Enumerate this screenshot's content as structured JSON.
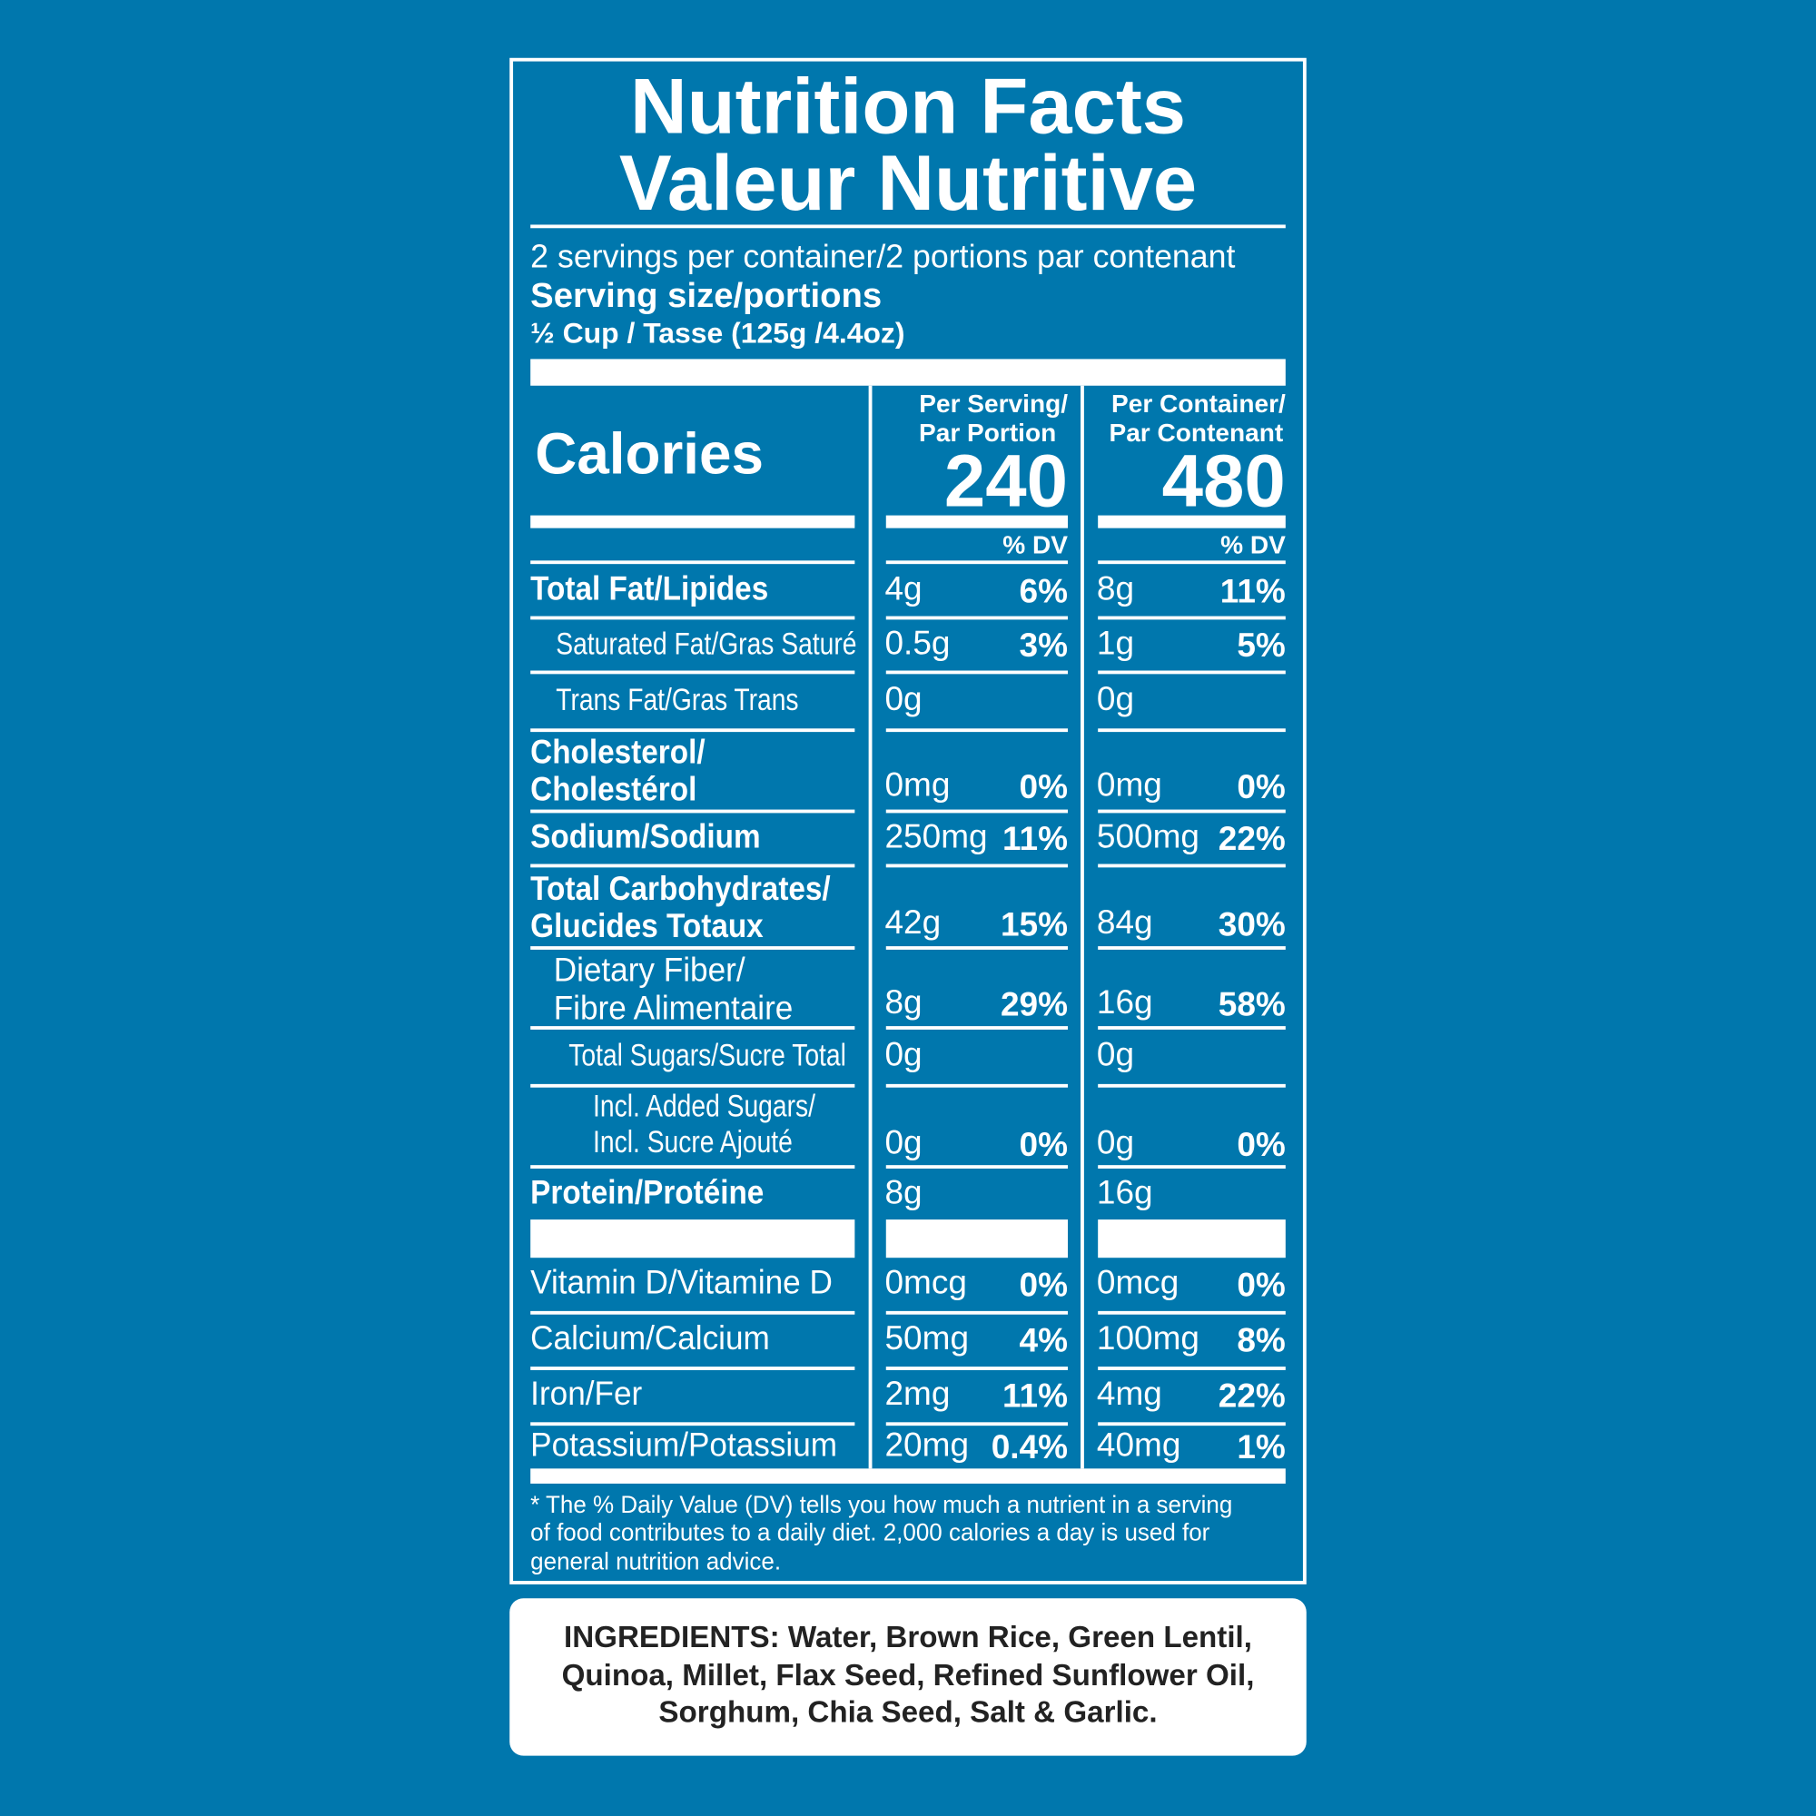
{
  "header": {
    "title": [
      "Nutrition Facts",
      "Valeur Nutritive"
    ],
    "servings": "2 servings per container/2 portions par contenant",
    "serving_size_label": "Serving size/portions",
    "serving_size": "½ Cup / Tasse (125g /4.4oz)"
  },
  "calories": {
    "label": "Calories",
    "serving_header": [
      "Per Serving/",
      "Par Portion"
    ],
    "serving": "240",
    "container_header": [
      "Per Container/",
      "Par Contenant"
    ],
    "container": "480",
    "dv_header": "% DV"
  },
  "rows": [
    {
      "label": [
        "Total Fat/Lipides"
      ],
      "serving": {
        "amount": "4g",
        "dv": "6%"
      },
      "container": {
        "amount": "8g",
        "dv": "11%"
      }
    },
    {
      "label": [
        "Saturated Fat/Gras Saturé"
      ],
      "serving": {
        "amount": "0.5g",
        "dv": "3%"
      },
      "container": {
        "amount": "1g",
        "dv": "5%"
      }
    },
    {
      "label": [
        "Trans Fat/Gras Trans"
      ],
      "serving": {
        "amount": "0g"
      },
      "container": {
        "amount": "0g"
      }
    },
    {
      "label": [
        "Cholesterol/",
        "Cholestérol"
      ],
      "serving": {
        "amount": "0mg",
        "dv": "0%"
      },
      "container": {
        "amount": "0mg",
        "dv": "0%"
      }
    },
    {
      "label": [
        "Sodium/Sodium"
      ],
      "serving": {
        "amount": "250mg",
        "dv": "11%"
      },
      "container": {
        "amount": "500mg",
        "dv": "22%"
      }
    },
    {
      "label": [
        "Total Carbohydrates/",
        "Glucides Totaux"
      ],
      "serving": {
        "amount": "42g",
        "dv": "15%"
      },
      "container": {
        "amount": "84g",
        "dv": "30%"
      }
    },
    {
      "label": [
        "Dietary Fiber/",
        "Fibre Alimentaire"
      ],
      "serving": {
        "amount": "8g",
        "dv": "29%"
      },
      "container": {
        "amount": "16g",
        "dv": "58%"
      }
    },
    {
      "label": [
        "Total Sugars/Sucre Total"
      ],
      "serving": {
        "amount": "0g"
      },
      "container": {
        "amount": "0g"
      }
    },
    {
      "label": [
        "Incl. Added Sugars/",
        "Incl. Sucre Ajouté"
      ],
      "serving": {
        "amount": "0g",
        "dv": "0%"
      },
      "container": {
        "amount": "0g",
        "dv": "0%"
      }
    },
    {
      "label": [
        "Protein/Protéine"
      ],
      "serving": {
        "amount": "8g"
      },
      "container": {
        "amount": "16g"
      }
    },
    {
      "label": [
        "Vitamin D/Vitamine D"
      ],
      "serving": {
        "amount": "0mcg",
        "dv": "0%"
      },
      "container": {
        "amount": "0mcg",
        "dv": "0%"
      }
    },
    {
      "label": [
        "Calcium/Calcium"
      ],
      "serving": {
        "amount": "50mg",
        "dv": "4%"
      },
      "container": {
        "amount": "100mg",
        "dv": "8%"
      }
    },
    {
      "label": [
        "Iron/Fer"
      ],
      "serving": {
        "amount": "2mg",
        "dv": "11%"
      },
      "container": {
        "amount": "4mg",
        "dv": "22%"
      }
    },
    {
      "label": [
        "Potassium/Potassium"
      ],
      "serving": {
        "amount": "20mg",
        "dv": "0.4%"
      },
      "container": {
        "amount": "40mg",
        "dv": "1%"
      }
    }
  ],
  "footnote": [
    "* The % Daily Value (DV) tells you how much a nutrient in a serving",
    "of food contributes to a daily diet. 2,000 calories a day is used for",
    "general nutrition advice."
  ],
  "ingredients": [
    "INGREDIENTS: Water, Brown Rice, Green Lentil,",
    "Quinoa, Millet, Flax Seed, Refined Sunflower Oil,",
    "Sorghum, Chia Seed, Salt & Garlic."
  ]
}
